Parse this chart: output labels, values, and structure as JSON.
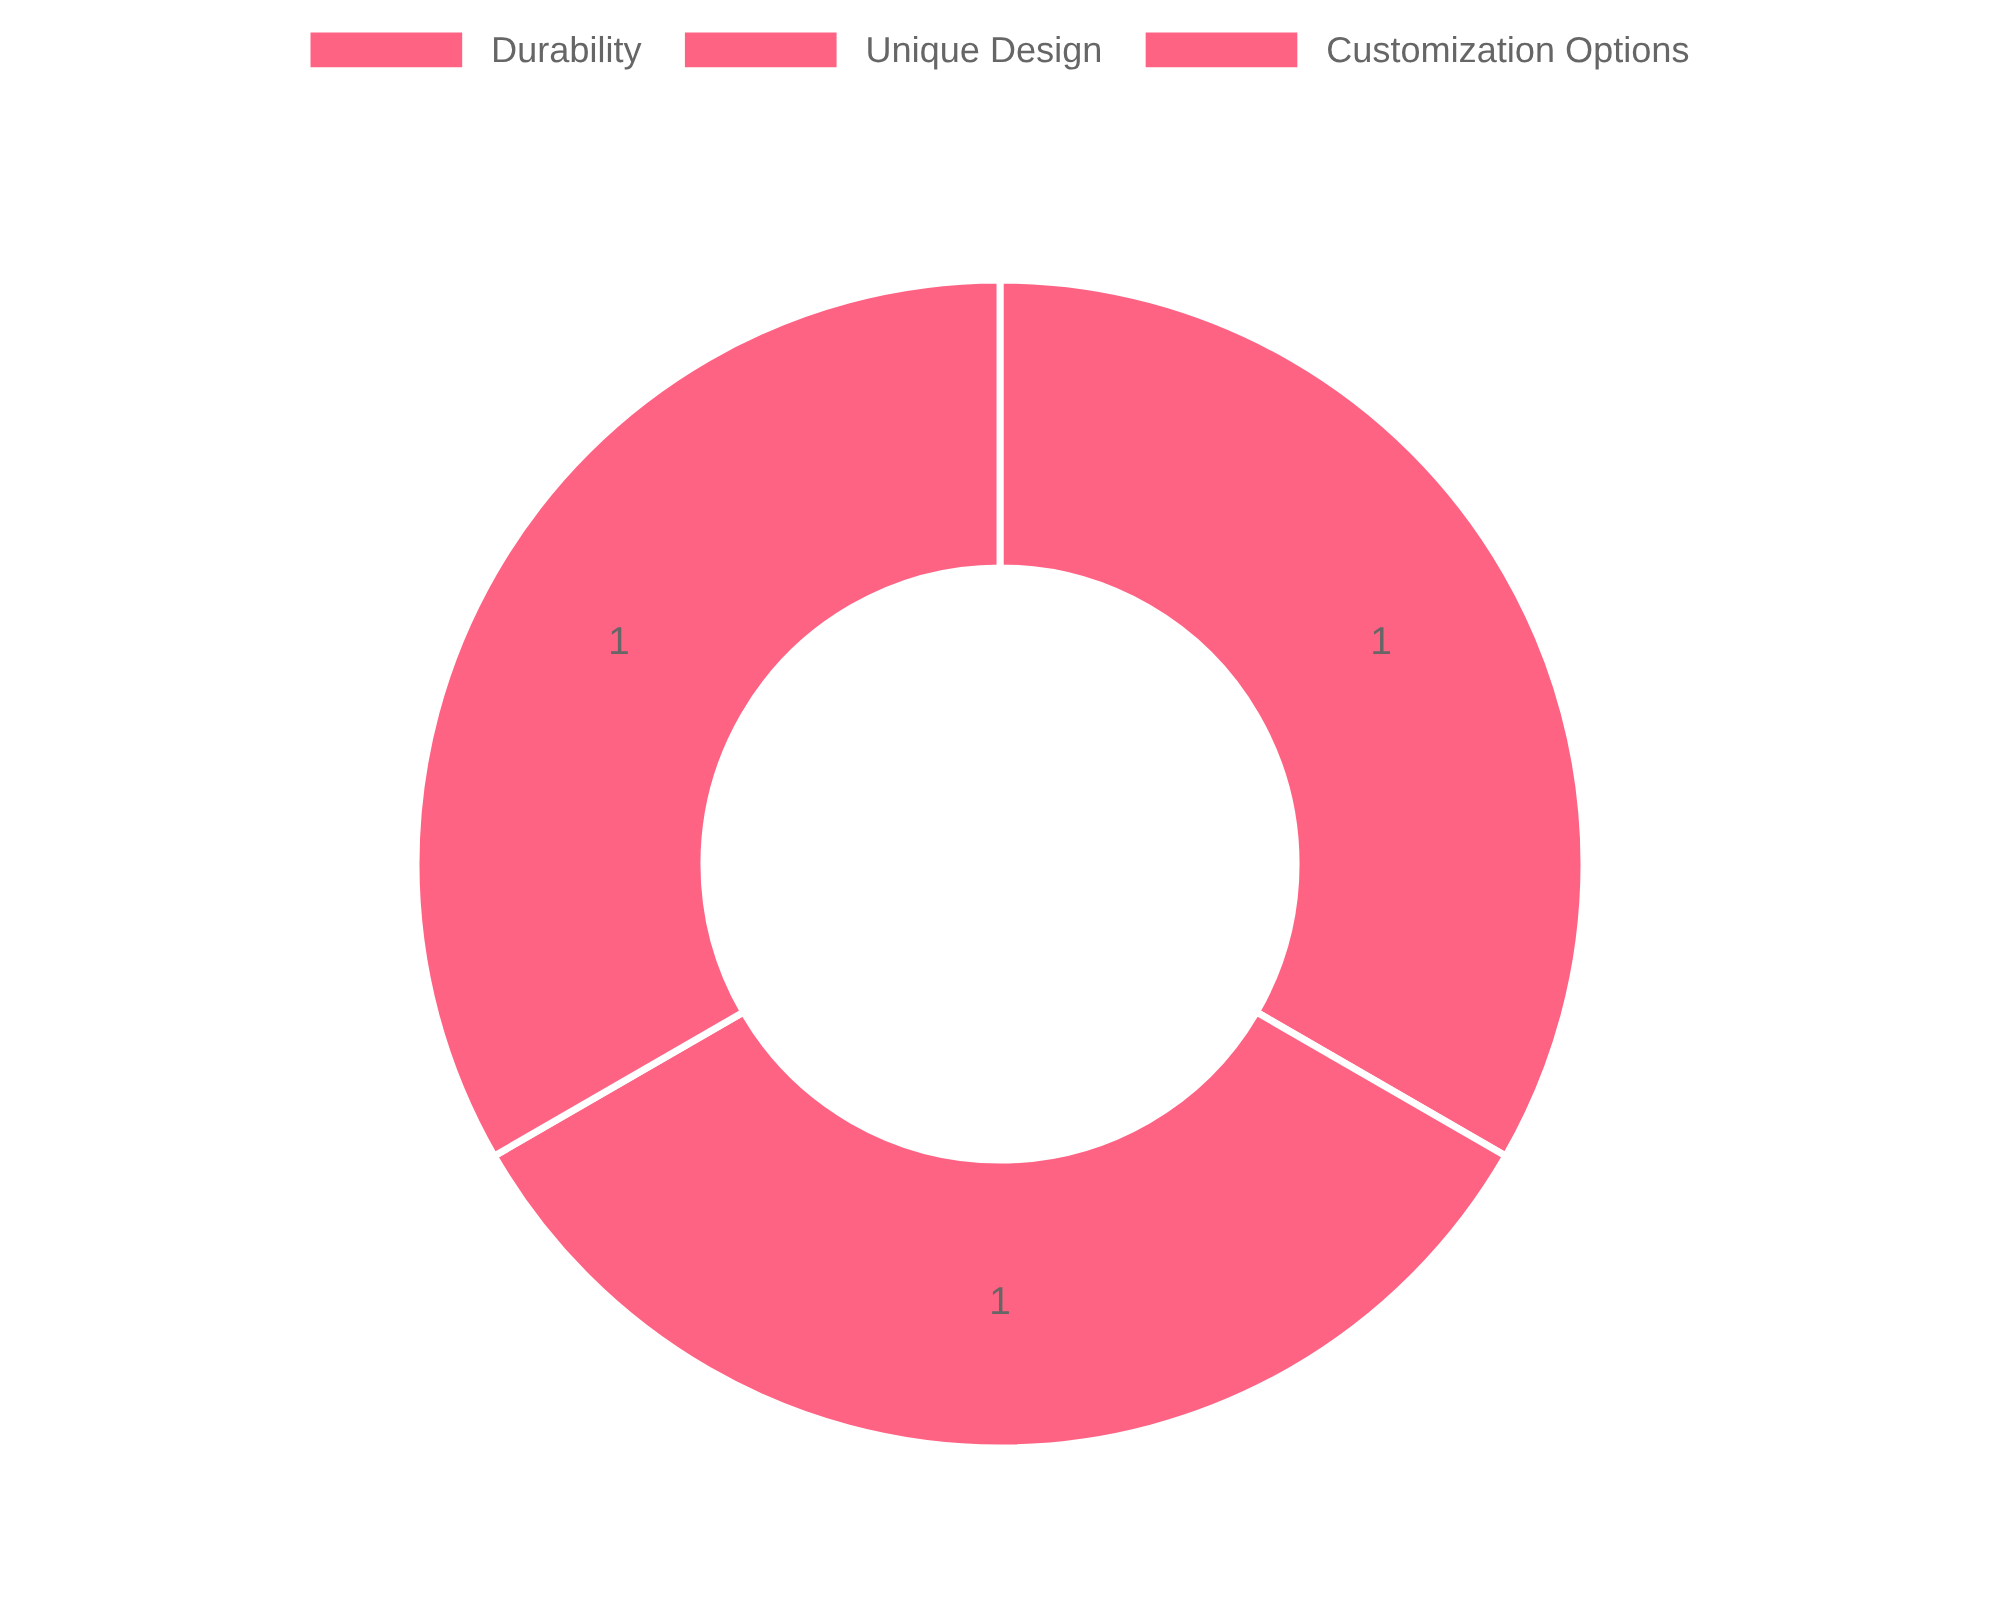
{
  "chart_data": {
    "type": "donut",
    "categories": [
      "Durability",
      "Unique Design",
      "Customization Options"
    ],
    "values": [
      1,
      1,
      1
    ],
    "colors": [
      "#ff6384",
      "#ff6384",
      "#ff6384"
    ],
    "data_labels": true,
    "legend": "top"
  }
}
